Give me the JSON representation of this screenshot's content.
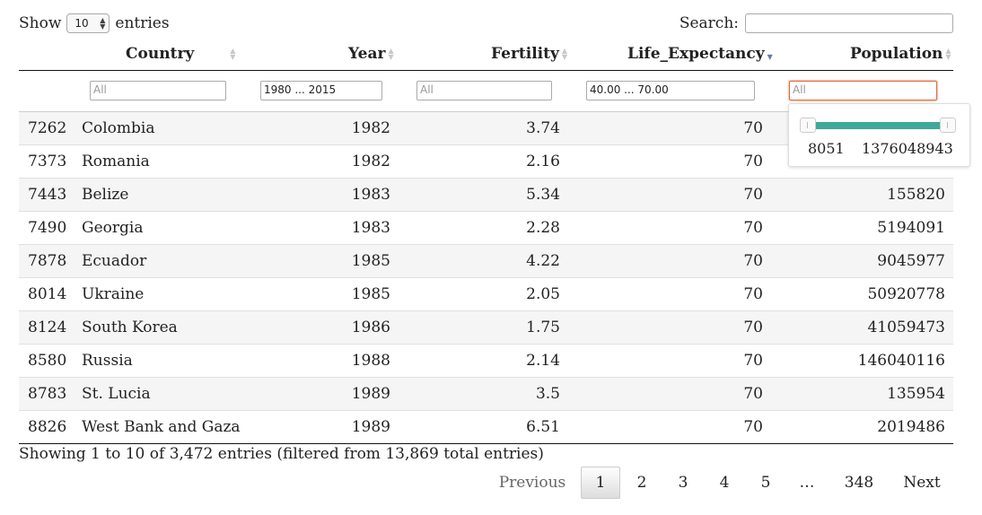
{
  "length_menu": {
    "show_label": "Show",
    "selected": "10",
    "entries_label": "entries"
  },
  "search": {
    "label": "Search:",
    "value": ""
  },
  "columns": [
    {
      "label": ""
    },
    {
      "label": "Country"
    },
    {
      "label": "Year"
    },
    {
      "label": "Fertility"
    },
    {
      "label": "Life_Expectancy"
    },
    {
      "label": "Population"
    }
  ],
  "filters": {
    "country": {
      "placeholder": "All",
      "value": ""
    },
    "year": {
      "value": "1980 ... 2015"
    },
    "fertility": {
      "placeholder": "All",
      "value": ""
    },
    "life_expectancy": {
      "value": "40.00 ... 70.00"
    },
    "population": {
      "placeholder": "All",
      "value": ""
    }
  },
  "population_slider": {
    "min": "8051",
    "max": "1376048943"
  },
  "rows": [
    {
      "id": "7262",
      "country": "Colombia",
      "year": "1982",
      "fertility": "3.74",
      "life": "70",
      "population": ""
    },
    {
      "id": "7373",
      "country": "Romania",
      "year": "1982",
      "fertility": "2.16",
      "life": "70",
      "population": ""
    },
    {
      "id": "7443",
      "country": "Belize",
      "year": "1983",
      "fertility": "5.34",
      "life": "70",
      "population": "155820"
    },
    {
      "id": "7490",
      "country": "Georgia",
      "year": "1983",
      "fertility": "2.28",
      "life": "70",
      "population": "5194091"
    },
    {
      "id": "7878",
      "country": "Ecuador",
      "year": "1985",
      "fertility": "4.22",
      "life": "70",
      "population": "9045977"
    },
    {
      "id": "8014",
      "country": "Ukraine",
      "year": "1985",
      "fertility": "2.05",
      "life": "70",
      "population": "50920778"
    },
    {
      "id": "8124",
      "country": "South Korea",
      "year": "1986",
      "fertility": "1.75",
      "life": "70",
      "population": "41059473"
    },
    {
      "id": "8580",
      "country": "Russia",
      "year": "1988",
      "fertility": "2.14",
      "life": "70",
      "population": "146040116"
    },
    {
      "id": "8783",
      "country": "St. Lucia",
      "year": "1989",
      "fertility": "3.5",
      "life": "70",
      "population": "135954"
    },
    {
      "id": "8826",
      "country": "West Bank and Gaza",
      "year": "1989",
      "fertility": "6.51",
      "life": "70",
      "population": "2019486"
    }
  ],
  "info": "Showing 1 to 10 of 3,472 entries (filtered from 13,869 total entries)",
  "pagination": {
    "previous": "Previous",
    "pages": [
      "1",
      "2",
      "3",
      "4",
      "5",
      "…",
      "348"
    ],
    "next": "Next",
    "current": "1"
  },
  "colors": {
    "slider_track": "#3ea99a",
    "focus_border": "#e06a3b",
    "sort_active": "#6a76b8"
  }
}
